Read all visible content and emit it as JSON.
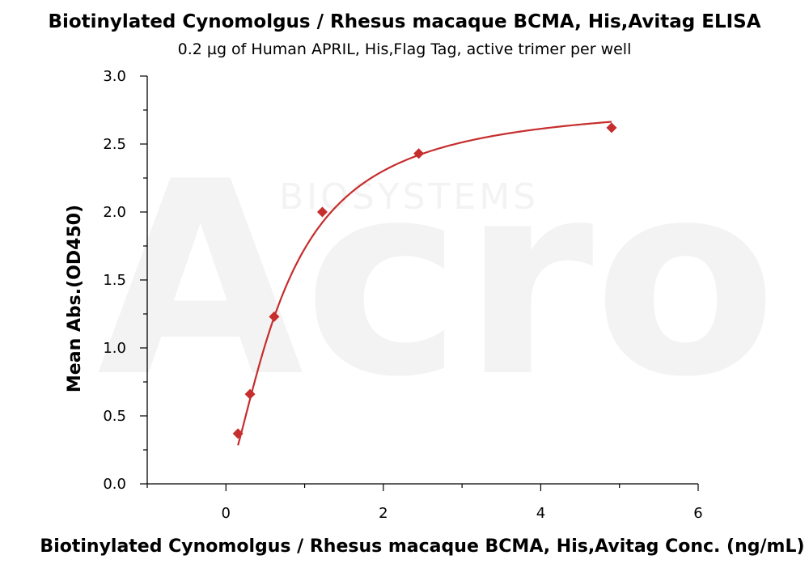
{
  "chart_data": {
    "type": "scatter",
    "title": "Biotinylated Cynomolgus / Rhesus macaque BCMA, His,Avitag ELISA",
    "subtitle": "0.2 µg of Human APRIL, His,Flag Tag, active trimer per well",
    "xlabel": "Biotinylated Cynomolgus / Rhesus macaque BCMA, His,Avitag Conc. (ng/mL)",
    "ylabel": "Mean Abs.(OD450)",
    "xlim": [
      -1,
      6
    ],
    "ylim": [
      0,
      3
    ],
    "x_ticks": [
      0,
      2,
      4,
      6
    ],
    "y_ticks": [
      0.0,
      0.5,
      1.0,
      1.5,
      2.0,
      2.5,
      3.0
    ],
    "x_tick_labels": [
      "0",
      "2",
      "4",
      "6"
    ],
    "y_tick_labels": [
      "0.0",
      "0.5",
      "1.0",
      "1.5",
      "2.0",
      "2.5",
      "3.0"
    ],
    "grid": false,
    "legend": "none",
    "series": [
      {
        "x": [
          0.153,
          0.306,
          0.613,
          1.225,
          2.45,
          4.9
        ],
        "y": [
          0.37,
          0.66,
          1.23,
          2.0,
          2.43,
          2.62
        ],
        "marker": "diamond",
        "color": "#c62d2d",
        "fit_curve": true
      }
    ],
    "watermark": {
      "logo": "Acro",
      "text": "BIOSYSTEMS"
    }
  }
}
